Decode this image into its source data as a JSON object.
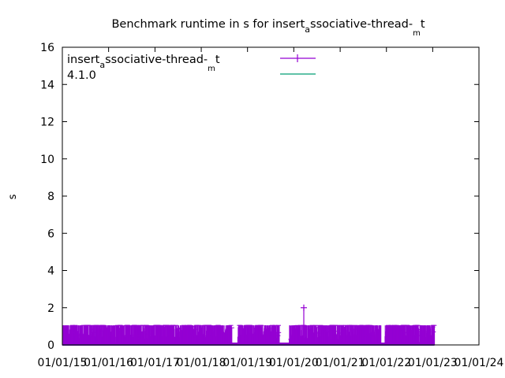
{
  "chart_data": {
    "type": "line",
    "title_main": "Benchmark runtime in s for insert",
    "title_sub1": "a",
    "title_mid": "ssociative-thread-",
    "title_sub2": "m",
    "title_end": "t",
    "ylabel": "s",
    "ylim": [
      0,
      16
    ],
    "y_ticks": [
      "0",
      "2",
      "4",
      "6",
      "8",
      "10",
      "12",
      "14",
      "16"
    ],
    "x_ticks": [
      "01/01/15",
      "01/01/16",
      "01/01/17",
      "01/01/18",
      "01/01/19",
      "01/01/20",
      "01/01/21",
      "01/01/22",
      "01/01/23",
      "01/01/24"
    ],
    "x_range": [
      "2015-01-01",
      "2024-01-01"
    ],
    "grid": false,
    "legend_position": "top-left",
    "series": [
      {
        "name_main": "insert",
        "name_sub1": "a",
        "name_mid": "ssociative-thread-",
        "name_sub2": "m",
        "name_end": "t",
        "color": "#9400d3",
        "style": "impulses-with-points",
        "date_start": "2015-01-01",
        "date_end": "2023-01-15",
        "typical_high": 1.05,
        "typical_low": 0.0,
        "gaps": [
          [
            "2018-09-01",
            "2018-10-15"
          ],
          [
            "2019-09-10",
            "2019-11-25"
          ],
          [
            "2021-11-20",
            "2021-12-20"
          ]
        ],
        "spikes": [
          {
            "date": "2020-03-20",
            "value": 2.0
          }
        ]
      },
      {
        "name": "4.1.0",
        "color": "#009e73",
        "style": "line",
        "points": [
          [
            "2015-01-01",
            0
          ],
          [
            "2023-01-15",
            0
          ]
        ]
      }
    ]
  }
}
